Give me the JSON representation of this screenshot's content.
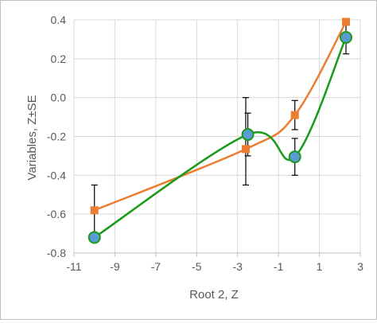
{
  "chart_data": {
    "type": "scatter",
    "title": "",
    "xlabel": "Root 2, Z",
    "ylabel": "Variables, Z±SE",
    "xlim": [
      -11,
      3
    ],
    "ylim": [
      -0.8,
      0.4
    ],
    "x_ticks": [
      -11,
      -9,
      -7,
      -5,
      -3,
      -1,
      1,
      3
    ],
    "y_ticks": [
      -0.8,
      -0.6,
      -0.4,
      -0.2,
      0.0,
      0.2,
      0.4
    ],
    "x_tick_labels": [
      "-11",
      "-9",
      "-7",
      "-5",
      "-3",
      "-1",
      "1",
      "3"
    ],
    "y_tick_labels": [
      "-0.8",
      "-0.6",
      "-0.4",
      "-0.2",
      "0.0",
      "0.2",
      "0.4"
    ],
    "grid": true,
    "series": [
      {
        "color": "#ed7d31",
        "marker": "square",
        "line": "smooth",
        "points": [
          {
            "x": -10.0,
            "y": -0.58,
            "se": 0.13
          },
          {
            "x": -2.6,
            "y": -0.265,
            "se": 0.0
          },
          {
            "x": -0.2,
            "y": -0.09,
            "se": 0.075
          },
          {
            "x": 2.3,
            "y": 0.39,
            "se": 0.0
          }
        ]
      },
      {
        "color": "#1a9a1a",
        "marker_fill": "#5b9bd5",
        "marker": "circle",
        "line": "smooth",
        "points": [
          {
            "x": -10.0,
            "y": -0.72,
            "se": 0.0
          },
          {
            "x": -2.5,
            "y": -0.19,
            "se": 0.11
          },
          {
            "x": -0.2,
            "y": -0.305,
            "se": 0.095
          },
          {
            "x": 2.3,
            "y": 0.31,
            "se": 0.085
          }
        ]
      }
    ],
    "extra_error_bars": [
      {
        "x": -2.6,
        "low": -0.45,
        "high": 0.0
      }
    ]
  }
}
